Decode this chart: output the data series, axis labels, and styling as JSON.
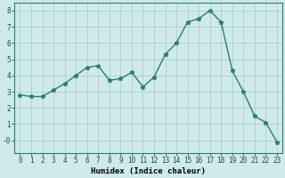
{
  "x": [
    0,
    1,
    2,
    3,
    4,
    5,
    6,
    7,
    8,
    9,
    10,
    11,
    12,
    13,
    14,
    15,
    16,
    17,
    18,
    19,
    20,
    21,
    22,
    23
  ],
  "y": [
    2.8,
    2.7,
    2.7,
    3.1,
    3.5,
    4.0,
    4.5,
    4.6,
    3.7,
    3.8,
    4.2,
    3.3,
    3.9,
    5.3,
    6.0,
    7.3,
    7.5,
    8.0,
    7.3,
    4.3,
    3.0,
    1.5,
    1.1,
    -0.1
  ],
  "xlabel": "Humidex (Indice chaleur)",
  "xlim": [
    -0.5,
    23.5
  ],
  "ylim": [
    -0.8,
    8.5
  ],
  "yticks": [
    0,
    1,
    2,
    3,
    4,
    5,
    6,
    7,
    8
  ],
  "ytick_labels": [
    "-0",
    "1",
    "2",
    "3",
    "4",
    "5",
    "6",
    "7",
    "8"
  ],
  "xticks": [
    0,
    1,
    2,
    3,
    4,
    5,
    6,
    7,
    8,
    9,
    10,
    11,
    12,
    13,
    14,
    15,
    16,
    17,
    18,
    19,
    20,
    21,
    22,
    23
  ],
  "line_color": "#2d7d6e",
  "marker": "*",
  "marker_size": 3.5,
  "bg_color": "#ceeaea",
  "grid_color": "#adc8c8",
  "tick_label_fontsize": 5.5,
  "xlabel_fontsize": 6.5,
  "line_width": 1.0
}
